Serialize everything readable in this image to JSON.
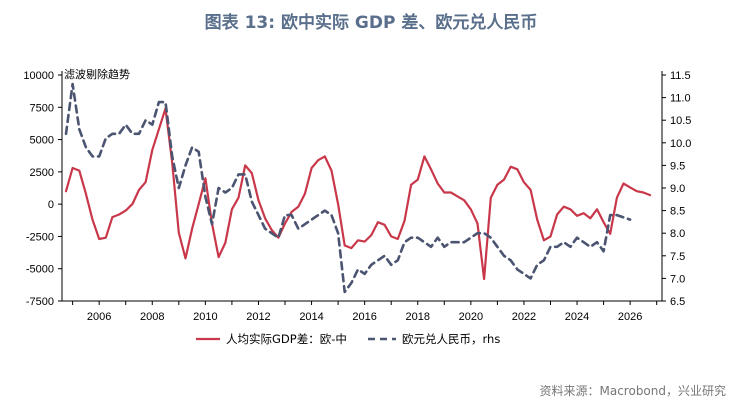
{
  "title": "图表 13: 欧中实际 GDP 差、欧元兑人民币",
  "source": "资料来源：Macrobond，兴业研究",
  "chart_data": {
    "type": "line",
    "annotation": "滤波剔除趋势",
    "x_ticks": [
      2006,
      2008,
      2010,
      2012,
      2014,
      2016,
      2018,
      2020,
      2022,
      2024,
      2026
    ],
    "y_left": {
      "ticks": [
        10000,
        7500,
        5000,
        2500,
        0,
        -2500,
        -5000,
        -7500
      ],
      "lim": [
        -7500,
        10000
      ]
    },
    "y_right": {
      "ticks": [
        11.5,
        11.0,
        10.5,
        10.0,
        9.5,
        9.0,
        8.5,
        8.0,
        7.5,
        7.0,
        6.5
      ],
      "lim": [
        6.5,
        11.5
      ]
    },
    "grid": false,
    "legend_position": "bottom",
    "colors": {
      "gdp_diff": "#c9384a",
      "eurcny": "#4b5470"
    },
    "series": [
      {
        "name": "人均实际GDP差：欧-中",
        "axis": "left",
        "style": "solid",
        "x": [
          2004.75,
          2005.0,
          2005.25,
          2005.5,
          2005.75,
          2006.0,
          2006.25,
          2006.5,
          2006.75,
          2007.0,
          2007.25,
          2007.5,
          2007.75,
          2008.0,
          2008.25,
          2008.5,
          2008.75,
          2009.0,
          2009.25,
          2009.5,
          2009.75,
          2010.0,
          2010.25,
          2010.5,
          2010.75,
          2011.0,
          2011.25,
          2011.5,
          2011.75,
          2012.0,
          2012.25,
          2012.5,
          2012.75,
          2013.0,
          2013.25,
          2013.5,
          2013.75,
          2014.0,
          2014.25,
          2014.5,
          2014.75,
          2015.0,
          2015.25,
          2015.5,
          2015.75,
          2016.0,
          2016.25,
          2016.5,
          2016.75,
          2017.0,
          2017.25,
          2017.5,
          2017.75,
          2018.0,
          2018.25,
          2018.5,
          2018.75,
          2019.0,
          2019.25,
          2019.5,
          2019.75,
          2020.0,
          2020.25,
          2020.5,
          2020.75,
          2021.0,
          2021.25,
          2021.5,
          2021.75,
          2022.0,
          2022.25,
          2022.5,
          2022.75,
          2023.0,
          2023.25,
          2023.5,
          2023.75,
          2024.0,
          2024.25,
          2024.5,
          2024.75,
          2025.0,
          2025.25,
          2025.5,
          2025.75,
          2026.0,
          2026.25,
          2026.5,
          2026.75
        ],
        "values": [
          1000,
          2800,
          2600,
          800,
          -1200,
          -2700,
          -2600,
          -1000,
          -800,
          -500,
          0,
          1100,
          1700,
          4200,
          5800,
          7400,
          3200,
          -2200,
          -4200,
          -1900,
          0,
          2000,
          -1500,
          -4100,
          -3000,
          -400,
          500,
          3000,
          2400,
          300,
          -1100,
          -2000,
          -2600,
          -1500,
          -600,
          -200,
          800,
          2800,
          3400,
          3700,
          2600,
          0,
          -3200,
          -3400,
          -2800,
          -2900,
          -2400,
          -1400,
          -1600,
          -2500,
          -2700,
          -1300,
          1500,
          1900,
          3700,
          2700,
          1600,
          900,
          900,
          600,
          300,
          -400,
          -1500,
          -5800,
          500,
          1500,
          1900,
          2900,
          2700,
          1700,
          1100,
          -1200,
          -2800,
          -2500,
          -800,
          -200,
          -400,
          -900,
          -700,
          -1100,
          -400,
          -1400,
          -2300,
          500,
          1600,
          1300,
          1000,
          900,
          700
        ]
      },
      {
        "name": "欧元兑人民币，rhs",
        "axis": "right",
        "style": "dashed",
        "x": [
          2004.75,
          2005.0,
          2005.25,
          2005.5,
          2005.75,
          2006.0,
          2006.25,
          2006.5,
          2006.75,
          2007.0,
          2007.25,
          2007.5,
          2007.75,
          2008.0,
          2008.25,
          2008.5,
          2008.75,
          2009.0,
          2009.25,
          2009.5,
          2009.75,
          2010.0,
          2010.25,
          2010.5,
          2010.75,
          2011.0,
          2011.25,
          2011.5,
          2011.75,
          2012.0,
          2012.25,
          2012.5,
          2012.75,
          2013.0,
          2013.25,
          2013.5,
          2013.75,
          2014.0,
          2014.25,
          2014.5,
          2014.75,
          2015.0,
          2015.25,
          2015.5,
          2015.75,
          2016.0,
          2016.25,
          2016.5,
          2016.75,
          2017.0,
          2017.25,
          2017.5,
          2017.75,
          2018.0,
          2018.25,
          2018.5,
          2018.75,
          2019.0,
          2019.25,
          2019.5,
          2019.75,
          2020.0,
          2020.25,
          2020.5,
          2020.75,
          2021.0,
          2021.25,
          2021.5,
          2021.75,
          2022.0,
          2022.25,
          2022.5,
          2022.75,
          2023.0,
          2023.25,
          2023.5,
          2023.75,
          2024.0,
          2024.25,
          2024.5,
          2024.75,
          2025.0,
          2025.25,
          2025.5,
          2025.75,
          2026.0
        ],
        "values": [
          10.2,
          11.3,
          10.3,
          9.9,
          9.7,
          9.7,
          10.1,
          10.2,
          10.2,
          10.4,
          10.2,
          10.2,
          10.5,
          10.4,
          10.9,
          10.9,
          9.7,
          9.0,
          9.5,
          9.9,
          9.8,
          8.8,
          8.2,
          9.0,
          8.9,
          9.0,
          9.3,
          9.3,
          8.7,
          8.4,
          8.1,
          8.0,
          7.9,
          8.4,
          8.4,
          8.1,
          8.2,
          8.3,
          8.4,
          8.5,
          8.4,
          8.0,
          6.7,
          6.9,
          7.2,
          7.1,
          7.3,
          7.4,
          7.5,
          7.3,
          7.4,
          7.8,
          7.9,
          7.9,
          7.8,
          7.7,
          7.9,
          7.7,
          7.8,
          7.8,
          7.8,
          7.9,
          8.0,
          8.0,
          7.9,
          7.7,
          7.5,
          7.4,
          7.2,
          7.1,
          7.0,
          7.3,
          7.4,
          7.7,
          7.7,
          7.8,
          7.7,
          7.9,
          7.8,
          7.7,
          7.8,
          7.6,
          8.4,
          8.4,
          8.35,
          8.3
        ]
      }
    ]
  }
}
